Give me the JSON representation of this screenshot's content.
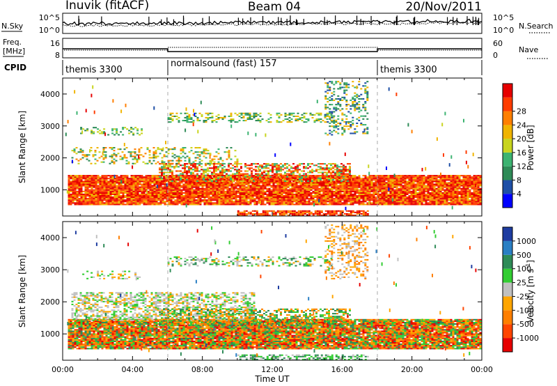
{
  "header": {
    "station": "Inuvik (fitACF)",
    "beam": "Beam 04",
    "date": "20/Nov/2011"
  },
  "top_panels": {
    "nsky_label": "N.Sky",
    "nsearch_label": "N.Search",
    "noise_ticks_left": [
      "10^5",
      "10^0"
    ],
    "noise_ticks_right": [
      "10^5",
      "10^0"
    ],
    "freq_label_1": "Freq.",
    "freq_label_2": "[MHz]",
    "freq_ticks": [
      "16",
      "8"
    ],
    "nave_label": "Nave",
    "nave_ticks": [
      "60",
      "0"
    ],
    "cpid_label": "CPID",
    "cpid_segments": [
      {
        "name": "themis 3300",
        "start": 0,
        "end": 6
      },
      {
        "name": "normalsound (fast) 157",
        "start": 6,
        "end": 18
      },
      {
        "name": "themis 3300",
        "start": 18,
        "end": 24
      }
    ]
  },
  "chart_data": [
    {
      "type": "heatmap",
      "name": "Power",
      "ylabel": "Slant Range [km]",
      "ylim": [
        180,
        4500
      ],
      "yticks": [
        "1000",
        "2000",
        "3000",
        "4000"
      ],
      "xlim": [
        0,
        24
      ],
      "colorbar": {
        "label": "Power [dB]",
        "ticks": [
          "4",
          "8",
          "12",
          "16",
          "20",
          "24",
          "28"
        ],
        "colors": [
          "#0000ff",
          "#1e4fa6",
          "#2e8b57",
          "#3cb371",
          "#c8d41e",
          "#f0b400",
          "#ff7f00",
          "#ff3c00",
          "#e60000"
        ]
      }
    },
    {
      "type": "heatmap",
      "name": "Velocity",
      "ylabel": "Slant Range [km]",
      "ylim": [
        180,
        4500
      ],
      "yticks": [
        "1000",
        "2000",
        "3000",
        "4000"
      ],
      "xlim": [
        0,
        24
      ],
      "xlabel": "Time UT",
      "xticks": [
        "00:00",
        "04:00",
        "08:00",
        "12:00",
        "16:00",
        "20:00",
        "00:00"
      ],
      "colorbar": {
        "label": "Velocity [m s",
        "label_sup": "-1",
        "label_end": "]",
        "ticks": [
          "1000",
          "500",
          "100",
          "25",
          "-25",
          "-100",
          "-500",
          "-1000"
        ],
        "colors": [
          "#1e3ca0",
          "#2a7fc4",
          "#2e8b57",
          "#32cd32",
          "#c0c0c0",
          "#ffa500",
          "#ff7f00",
          "#ff4500",
          "#e60000"
        ]
      }
    }
  ]
}
